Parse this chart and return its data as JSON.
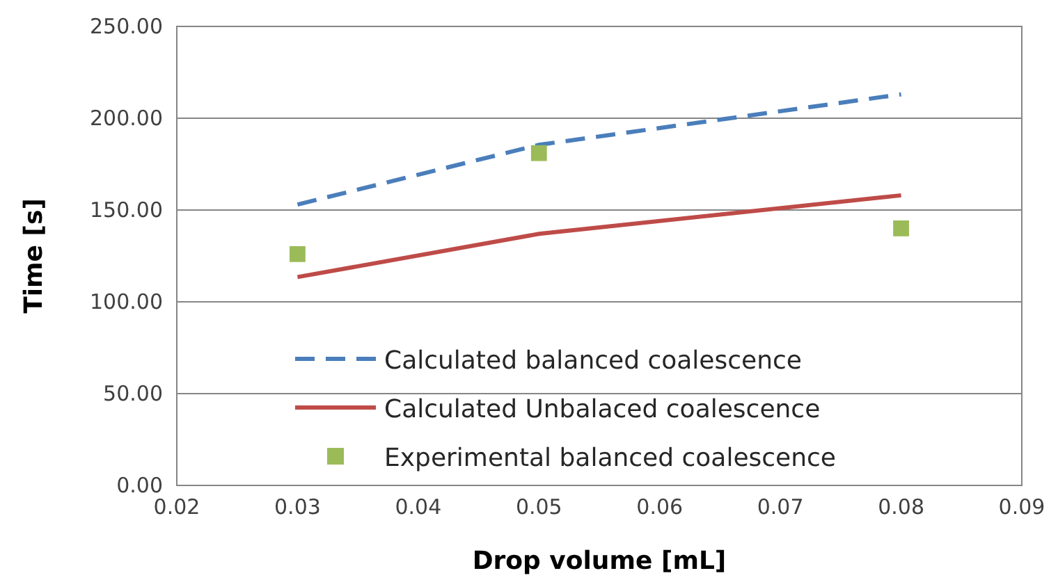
{
  "chart_data": {
    "type": "line",
    "xlabel": "Drop volume [mL]",
    "ylabel": "Time [s]",
    "xlim": [
      0.02,
      0.09
    ],
    "xticks": [
      {
        "value": 0.02,
        "label": "0.02"
      },
      {
        "value": 0.03,
        "label": "0.03"
      },
      {
        "value": 0.04,
        "label": "0.04"
      },
      {
        "value": 0.05,
        "label": "0.05"
      },
      {
        "value": 0.06,
        "label": "0.06"
      },
      {
        "value": 0.07,
        "label": "0.07"
      },
      {
        "value": 0.08,
        "label": "0.08"
      },
      {
        "value": 0.09,
        "label": "0.09"
      }
    ],
    "ylim": [
      0,
      250
    ],
    "yticks": [
      {
        "value": 0,
        "label": "0.00"
      },
      {
        "value": 50,
        "label": "50.00"
      },
      {
        "value": 100,
        "label": "100.00"
      },
      {
        "value": 150,
        "label": "150.00"
      },
      {
        "value": 200,
        "label": "200.00"
      },
      {
        "value": 250,
        "label": "250.00"
      }
    ],
    "grid": "y",
    "legend": "bottom",
    "x": [
      0.03,
      0.05,
      0.08
    ],
    "series": [
      {
        "name": "Calculated balanced coalescence",
        "color": "#4a7ebb",
        "line_style": "dashed",
        "marker": "none",
        "values": [
          153,
          185.5,
          213
        ]
      },
      {
        "name": "Calculated Unbalaced coalescence",
        "color": "#be4b48",
        "line_style": "solid",
        "marker": "none",
        "values": [
          113.5,
          137,
          158
        ]
      },
      {
        "name": "Experimental balanced coalescence",
        "type": "scatter",
        "color": "#9bbb59",
        "marker": "square",
        "values": [
          126,
          181,
          140
        ]
      }
    ]
  }
}
